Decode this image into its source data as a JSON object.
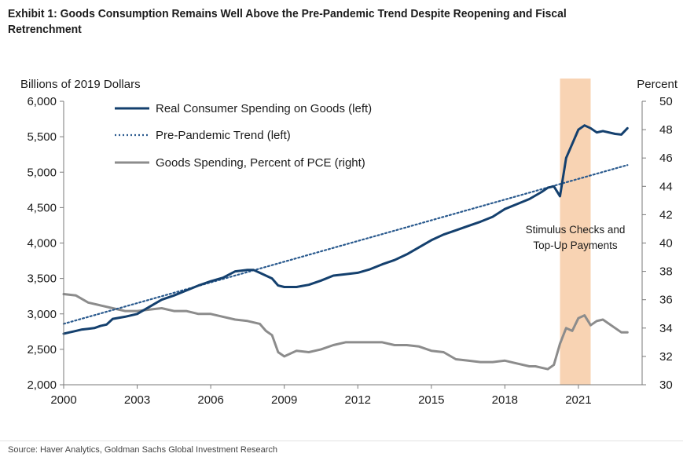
{
  "chart_title": "Exhibit 1: Goods Consumption Remains Well Above the Pre-Pandemic Trend Despite Reopening and Fiscal Retrenchment",
  "source": "Source: Haver Analytics, Goldman Sachs Global Investment Research",
  "chart_data": {
    "type": "line",
    "title": "Exhibit 1: Goods Consumption Remains Well Above the Pre-Pandemic Trend Despite Reopening and Fiscal Retrenchment",
    "ylabel_left": "Billions of 2019 Dollars",
    "ylabel_right": "Percent",
    "xlim": [
      2000,
      2023.6
    ],
    "ylim_left": [
      2000,
      6000
    ],
    "ylim_right": [
      30,
      50
    ],
    "x_ticks": [
      "2000",
      "2003",
      "2006",
      "2009",
      "2012",
      "2015",
      "2018",
      "2021"
    ],
    "y_ticks_left": [
      "2,000",
      "2,500",
      "3,000",
      "3,500",
      "4,000",
      "4,500",
      "5,000",
      "5,500",
      "6,000"
    ],
    "y_ticks_right": [
      "30",
      "32",
      "34",
      "36",
      "38",
      "40",
      "42",
      "44",
      "46",
      "48",
      "50"
    ],
    "legend": [
      "Real Consumer Spending on Goods (left)",
      "Pre-Pandemic Trend  (left)",
      "Goods Spending, Percent of PCE (right)"
    ],
    "shaded_region": {
      "x_start": 2020.25,
      "x_end": 2021.5,
      "label_line1": "Stimulus Checks and",
      "label_line2": "Top-Up Payments",
      "color": "#f8d3b3"
    },
    "colors": {
      "goods": "#14406e",
      "trend": "#2a5a8e",
      "pce_share": "#8c8c8c"
    },
    "series": [
      {
        "name": "Real Consumer Spending on Goods (left)",
        "axis": "left",
        "style": "solid",
        "x": [
          2000,
          2000.25,
          2000.5,
          2000.75,
          2001,
          2001.25,
          2001.5,
          2001.75,
          2002,
          2002.5,
          2003,
          2003.5,
          2004,
          2004.5,
          2005,
          2005.5,
          2006,
          2006.5,
          2007,
          2007.5,
          2007.75,
          2008,
          2008.5,
          2008.75,
          2009,
          2009.5,
          2010,
          2010.5,
          2011,
          2011.5,
          2012,
          2012.5,
          2013,
          2013.5,
          2014,
          2014.5,
          2015,
          2015.5,
          2016,
          2016.5,
          2017,
          2017.5,
          2018,
          2018.5,
          2019,
          2019.5,
          2019.75,
          2020,
          2020.25,
          2020.5,
          2020.75,
          2021,
          2021.25,
          2021.5,
          2021.75,
          2022,
          2022.5,
          2022.75,
          2023
        ],
        "values": [
          2720,
          2740,
          2760,
          2780,
          2790,
          2800,
          2830,
          2850,
          2930,
          2960,
          3000,
          3100,
          3200,
          3260,
          3330,
          3400,
          3460,
          3510,
          3600,
          3620,
          3620,
          3580,
          3500,
          3400,
          3380,
          3380,
          3410,
          3470,
          3540,
          3560,
          3580,
          3630,
          3700,
          3760,
          3840,
          3940,
          4040,
          4120,
          4180,
          4240,
          4300,
          4370,
          4480,
          4550,
          4620,
          4720,
          4780,
          4800,
          4660,
          5200,
          5400,
          5600,
          5660,
          5620,
          5560,
          5580,
          5540,
          5530,
          5620
        ]
      },
      {
        "name": "Pre-Pandemic Trend  (left)",
        "axis": "left",
        "style": "dotted",
        "x": [
          2000,
          2023
        ],
        "values": [
          2860,
          5100
        ]
      },
      {
        "name": "Goods Spending, Percent of PCE (right)",
        "axis": "right",
        "style": "solid",
        "x": [
          2000,
          2000.5,
          2001,
          2001.5,
          2002,
          2002.5,
          2003,
          2003.5,
          2004,
          2004.5,
          2005,
          2005.5,
          2006,
          2006.5,
          2007,
          2007.5,
          2008,
          2008.25,
          2008.5,
          2008.75,
          2009,
          2009.5,
          2010,
          2010.5,
          2011,
          2011.5,
          2012,
          2012.5,
          2013,
          2013.5,
          2014,
          2014.5,
          2015,
          2015.5,
          2016,
          2016.5,
          2017,
          2017.5,
          2018,
          2018.5,
          2019,
          2019.25,
          2019.5,
          2019.75,
          2020,
          2020.25,
          2020.5,
          2020.75,
          2021,
          2021.25,
          2021.5,
          2021.75,
          2022,
          2022.5,
          2022.75,
          2023
        ],
        "values": [
          36.4,
          36.3,
          35.8,
          35.6,
          35.4,
          35.2,
          35.2,
          35.3,
          35.4,
          35.2,
          35.2,
          35.0,
          35.0,
          34.8,
          34.6,
          34.5,
          34.3,
          33.8,
          33.5,
          32.3,
          32.0,
          32.4,
          32.3,
          32.5,
          32.8,
          33.0,
          33.0,
          33.0,
          33.0,
          32.8,
          32.8,
          32.7,
          32.4,
          32.3,
          31.8,
          31.7,
          31.6,
          31.6,
          31.7,
          31.5,
          31.3,
          31.3,
          31.2,
          31.1,
          31.4,
          32.9,
          34.0,
          33.8,
          34.7,
          34.9,
          34.2,
          34.5,
          34.6,
          34.0,
          33.7,
          33.7
        ]
      }
    ]
  }
}
